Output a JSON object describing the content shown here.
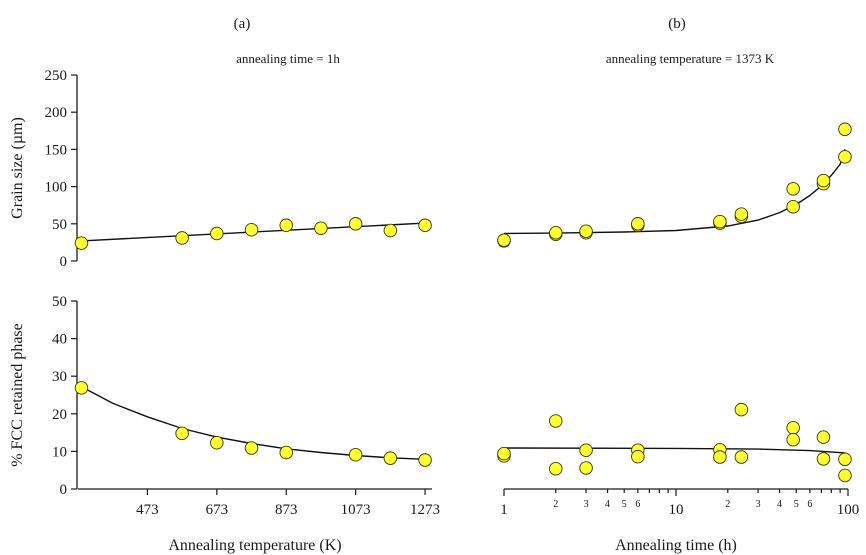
{
  "colors": {
    "marker_fill": "#ffff33",
    "marker_stroke": "#3a3a00",
    "line": "#111111",
    "axis": "#1a1a1a"
  },
  "panel_labels": {
    "a": "(a)",
    "b": "(b)"
  },
  "annotations": {
    "a": "annealing time = 1h",
    "b": "annealing temperature = 1373 K"
  },
  "chart_data": [
    {
      "type": "scatter",
      "id": "a-top",
      "ylabel": "Grain size (µm)",
      "xlim": [
        273,
        1293
      ],
      "ylim": [
        0,
        250
      ],
      "yticks": [
        0,
        50,
        100,
        150,
        200,
        250
      ],
      "x_scale": "linear",
      "series": [
        {
          "x": [
            283,
            573,
            673,
            773,
            873,
            973,
            1073,
            1173,
            1273
          ],
          "y": [
            24,
            31,
            37,
            42,
            48,
            44,
            50,
            41,
            48
          ]
        }
      ],
      "fit": {
        "x": [
          283,
          1273
        ],
        "y": [
          27,
          51
        ]
      }
    },
    {
      "type": "scatter",
      "id": "b-top",
      "xlim": [
        1,
        100
      ],
      "ylim": [
        0,
        250
      ],
      "x_scale": "log",
      "series": [
        {
          "x": [
            1,
            1,
            2,
            2,
            3,
            3,
            6,
            6,
            18,
            18,
            24,
            24,
            48,
            48,
            72,
            72,
            96,
            96
          ],
          "y": [
            27,
            28,
            36,
            38,
            38,
            40,
            48,
            50,
            51,
            53,
            60,
            63,
            73,
            97,
            104,
            108,
            140,
            177
          ]
        }
      ],
      "fit": {
        "x": [
          1,
          2,
          5,
          10,
          20,
          30,
          40,
          50,
          60,
          70,
          80,
          90,
          96
        ],
        "y": [
          37,
          37.5,
          39,
          41,
          47,
          55,
          65,
          76,
          88,
          101,
          115,
          130,
          150
        ]
      }
    },
    {
      "type": "scatter",
      "id": "a-bottom",
      "xlabel": "Annealing temperature (K)",
      "ylabel": "% FCC retained phase",
      "xlim": [
        273,
        1293
      ],
      "ylim": [
        0,
        50
      ],
      "xticks": [
        473,
        673,
        873,
        1073,
        1273
      ],
      "yticks": [
        0,
        10,
        20,
        30,
        40,
        50
      ],
      "x_scale": "linear",
      "series": [
        {
          "x": [
            283,
            573,
            673,
            773,
            873,
            1073,
            1173,
            1273
          ],
          "y": [
            26.9,
            14.8,
            12.3,
            10.9,
            9.7,
            9.1,
            8.2,
            7.7
          ]
        }
      ],
      "fit": {
        "x": [
          283,
          373,
          473,
          573,
          673,
          773,
          873,
          973,
          1073,
          1173,
          1273
        ],
        "y": [
          27.2,
          22.8,
          19.2,
          16.1,
          13.8,
          12.1,
          10.7,
          9.7,
          8.9,
          8.3,
          7.9
        ]
      }
    },
    {
      "type": "scatter",
      "id": "b-bottom",
      "xlabel": "Annealing time (h)",
      "xlim": [
        1,
        100
      ],
      "ylim": [
        0,
        50
      ],
      "x_scale": "log",
      "xticks_major": [
        1,
        10,
        100
      ],
      "xticks_minor": [
        2,
        3,
        4,
        5,
        6,
        20,
        30,
        40,
        50,
        60
      ],
      "series": [
        {
          "x": [
            1,
            1,
            2,
            2,
            3,
            3,
            6,
            6,
            18,
            18,
            24,
            24,
            48,
            48,
            72,
            72,
            96,
            96
          ],
          "y": [
            8.8,
            9.4,
            18.1,
            5.4,
            10.3,
            5.6,
            10.3,
            8.6,
            10.4,
            8.5,
            21.1,
            8.5,
            16.3,
            13.1,
            13.8,
            8.0,
            7.9,
            3.6
          ]
        }
      ],
      "fit": {
        "x": [
          1,
          10,
          30,
          60,
          96
        ],
        "y": [
          10.9,
          10.8,
          10.6,
          10.2,
          9.6
        ]
      }
    }
  ]
}
